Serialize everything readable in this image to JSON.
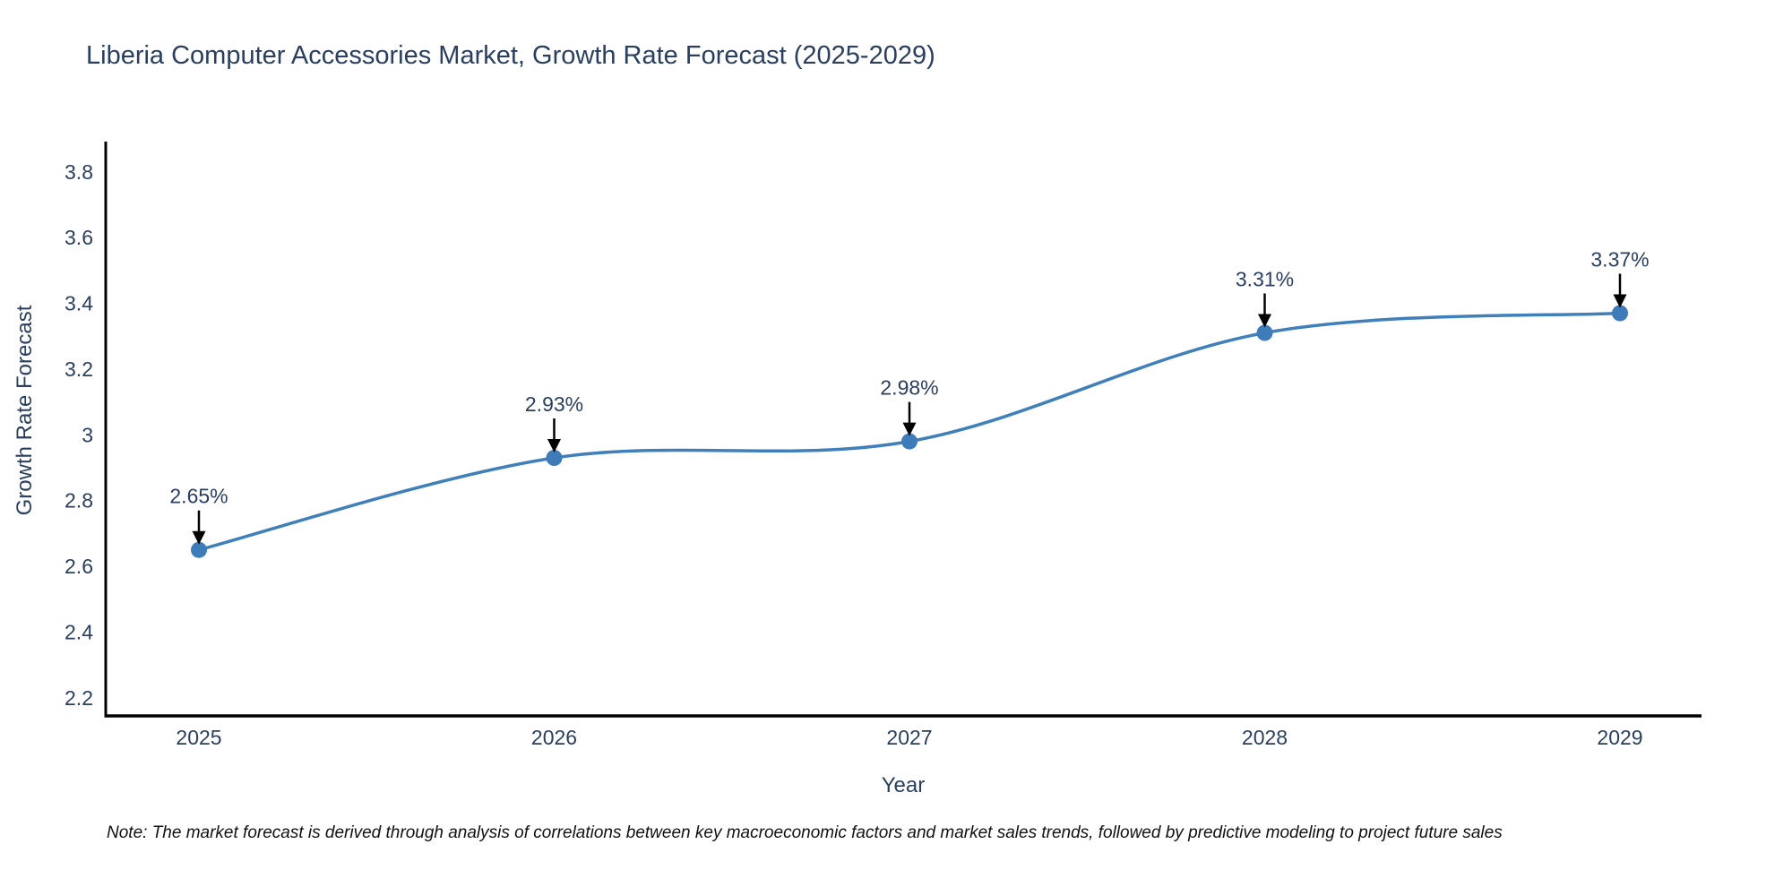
{
  "chart_data": {
    "type": "line",
    "title": "Liberia Computer Accessories Market, Growth Rate Forecast (2025-2029)",
    "xlabel": "Year",
    "ylabel": "Growth Rate Forecast",
    "categories": [
      "2025",
      "2026",
      "2027",
      "2028",
      "2029"
    ],
    "values": [
      2.65,
      2.93,
      2.98,
      3.31,
      3.37
    ],
    "point_labels": [
      "2.65%",
      "2.93%",
      "2.98%",
      "3.31%",
      "3.37%"
    ],
    "ytick_labels": [
      "2.2",
      "2.4",
      "2.6",
      "2.8",
      "3",
      "3.2",
      "3.4",
      "3.6",
      "3.8"
    ],
    "ytick_values": [
      2.2,
      2.4,
      2.6,
      2.8,
      3.0,
      3.2,
      3.4,
      3.6,
      3.8
    ],
    "ylim": [
      2.145,
      3.892
    ],
    "grid": false,
    "legend": false,
    "line_shape": "spline",
    "colors": {
      "line": "#3f7fba",
      "marker": "#3d7cb8",
      "axis_line": "#000000",
      "tick_text": "#2a3f5f",
      "title_text": "#2a3f5f",
      "annotation_text": "#2a3f5f",
      "annotation_arrow": "#000000",
      "background": "#ffffff"
    }
  },
  "note": {
    "text": "Note: The market forecast is derived through analysis of correlations between key macroeconomic factors and market sales trends, followed by predictive modeling to project future sales"
  }
}
